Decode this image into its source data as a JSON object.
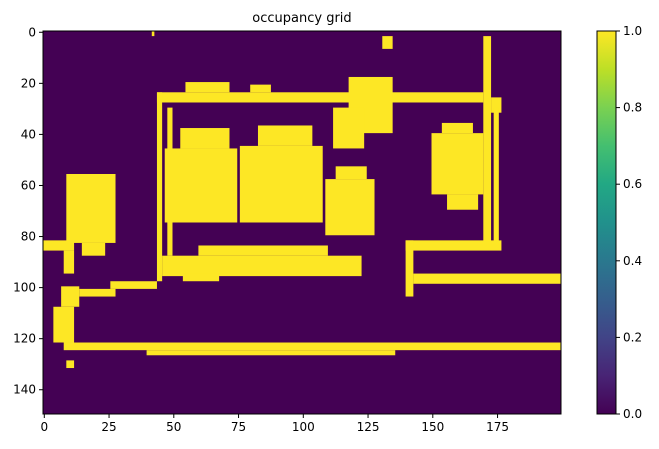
{
  "chart_data": {
    "type": "heatmap",
    "title": "occupancy grid",
    "xlabel": "",
    "ylabel": "",
    "grid_size": {
      "cols": 200,
      "rows": 150
    },
    "xlim": [
      -0.5,
      199.5
    ],
    "ylim": [
      149.5,
      -0.5
    ],
    "x_ticks": [
      0,
      25,
      50,
      75,
      100,
      125,
      150,
      175
    ],
    "y_ticks": [
      0,
      20,
      40,
      60,
      80,
      100,
      120,
      140
    ],
    "colorbar": {
      "range": [
        0.0,
        1.0
      ],
      "ticks": [
        "0.0",
        "0.2",
        "0.4",
        "0.6",
        "0.8",
        "1.0"
      ],
      "colormap": "viridis"
    },
    "colors": {
      "low": "#440154",
      "high": "#fde725"
    },
    "occupied_regions": [
      {
        "x": [
          44,
          170
        ],
        "y": [
          24,
          28
        ]
      },
      {
        "x": [
          44,
          46
        ],
        "y": [
          24,
          98
        ]
      },
      {
        "x": [
          48,
          50
        ],
        "y": [
          30,
          88
        ]
      },
      {
        "x": [
          170,
          173
        ],
        "y": [
          2,
          84
        ]
      },
      {
        "x": [
          173,
          177
        ],
        "y": [
          26,
          32
        ]
      },
      {
        "x": [
          174,
          176
        ],
        "y": [
          30,
          84
        ]
      },
      {
        "x": [
          140,
          177
        ],
        "y": [
          82,
          86
        ]
      },
      {
        "x": [
          140,
          143
        ],
        "y": [
          82,
          104
        ]
      },
      {
        "x": [
          143,
          200
        ],
        "y": [
          95,
          99
        ]
      },
      {
        "x": [
          118,
          135
        ],
        "y": [
          18,
          40
        ]
      },
      {
        "x": [
          112,
          124
        ],
        "y": [
          30,
          46
        ]
      },
      {
        "x": [
          131,
          135
        ],
        "y": [
          2,
          7
        ]
      },
      {
        "x": [
          42,
          43
        ],
        "y": [
          0,
          2
        ]
      },
      {
        "x": [
          47,
          75
        ],
        "y": [
          46,
          75
        ]
      },
      {
        "x": [
          53,
          72
        ],
        "y": [
          38,
          46
        ]
      },
      {
        "x": [
          76,
          108
        ],
        "y": [
          45,
          75
        ]
      },
      {
        "x": [
          83,
          104
        ],
        "y": [
          37,
          45
        ]
      },
      {
        "x": [
          109,
          128
        ],
        "y": [
          58,
          80
        ]
      },
      {
        "x": [
          113,
          125
        ],
        "y": [
          53,
          58
        ]
      },
      {
        "x": [
          55,
          72
        ],
        "y": [
          20,
          24
        ]
      },
      {
        "x": [
          80,
          88
        ],
        "y": [
          21,
          24
        ]
      },
      {
        "x": [
          150,
          170
        ],
        "y": [
          40,
          64
        ]
      },
      {
        "x": [
          154,
          166
        ],
        "y": [
          36,
          40
        ]
      },
      {
        "x": [
          156,
          168
        ],
        "y": [
          64,
          70
        ]
      },
      {
        "x": [
          46,
          123
        ],
        "y": [
          88,
          96
        ]
      },
      {
        "x": [
          60,
          110
        ],
        "y": [
          84,
          88
        ]
      },
      {
        "x": [
          54,
          68
        ],
        "y": [
          95,
          98
        ]
      },
      {
        "x": [
          9,
          28
        ],
        "y": [
          56,
          83
        ]
      },
      {
        "x": [
          15,
          24
        ],
        "y": [
          83,
          88
        ]
      },
      {
        "x": [
          0,
          12
        ],
        "y": [
          82,
          86
        ]
      },
      {
        "x": [
          8,
          12
        ],
        "y": [
          86,
          95
        ]
      },
      {
        "x": [
          26,
          44
        ],
        "y": [
          98,
          101
        ]
      },
      {
        "x": [
          14,
          28
        ],
        "y": [
          101,
          104
        ]
      },
      {
        "x": [
          7,
          14
        ],
        "y": [
          100,
          108
        ]
      },
      {
        "x": [
          4,
          12
        ],
        "y": [
          108,
          122
        ]
      },
      {
        "x": [
          8,
          200
        ],
        "y": [
          122,
          125
        ]
      },
      {
        "x": [
          40,
          136
        ],
        "y": [
          125,
          127
        ]
      },
      {
        "x": [
          9,
          12
        ],
        "y": [
          129,
          132
        ]
      }
    ]
  }
}
